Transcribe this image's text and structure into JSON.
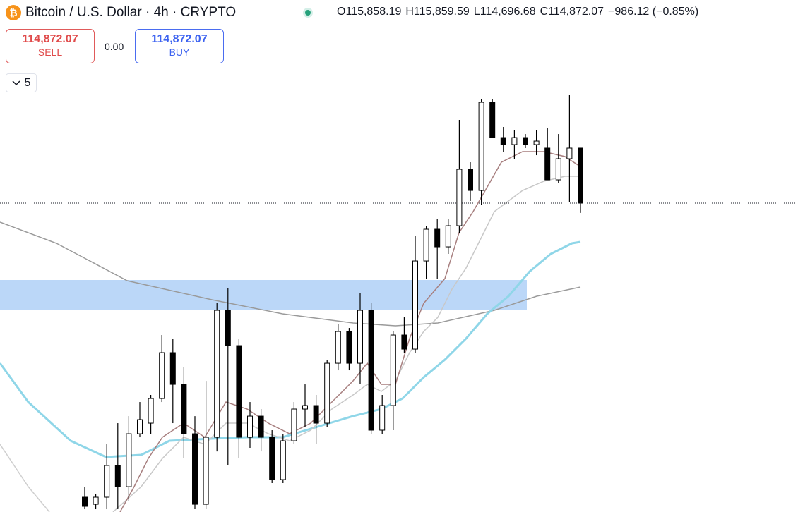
{
  "header": {
    "symbol_title": "Bitcoin / U.S. Dollar · 4h · CRYPTO",
    "ohlc": [
      {
        "key": "O",
        "value": "115,858.19"
      },
      {
        "key": "H",
        "value": "115,859.59"
      },
      {
        "key": "L",
        "value": "114,696.68"
      },
      {
        "key": "C",
        "value": "114,872.07"
      }
    ],
    "change": "−986.12 (−0.85%)"
  },
  "trade": {
    "sell": {
      "price": "114,872.07",
      "label": "SELL"
    },
    "spread": "0.00",
    "buy": {
      "price": "114,872.07",
      "label": "BUY"
    }
  },
  "indicator_toggle": "5",
  "candles": [
    [
      109601,
      109790,
      109386,
      109437
    ],
    [
      109474,
      109664,
      109386,
      109601
    ],
    [
      109601,
      110549,
      109386,
      110170
    ],
    [
      110170,
      110928,
      109386,
      109790
    ],
    [
      109790,
      111054,
      109538,
      110738
    ],
    [
      110738,
      111307,
      110675,
      110991
    ],
    [
      110928,
      111434,
      110738,
      111370
    ],
    [
      111370,
      112508,
      111307,
      112192
    ],
    [
      112192,
      112445,
      110928,
      111623
    ],
    [
      111623,
      111939,
      110296,
      110738
    ],
    [
      110738,
      111054,
      109386,
      109474
    ],
    [
      109474,
      111686,
      109386,
      110675
    ],
    [
      110675,
      113077,
      110422,
      112950
    ],
    [
      112950,
      113355,
      110170,
      112318
    ],
    [
      112318,
      112445,
      110296,
      110675
    ],
    [
      110675,
      111307,
      110486,
      111054
    ],
    [
      111054,
      111181,
      110422,
      110675
    ],
    [
      110675,
      110802,
      109854,
      109917
    ],
    [
      109917,
      110738,
      109854,
      110612
    ],
    [
      110612,
      111307,
      110549,
      111181
    ],
    [
      111181,
      111623,
      110865,
      111244
    ],
    [
      111244,
      111434,
      110549,
      110928
    ],
    [
      110928,
      112066,
      110865,
      112002
    ],
    [
      112002,
      112698,
      111876,
      112571
    ],
    [
      112571,
      112634,
      111876,
      112002
    ],
    [
      112002,
      113266,
      111623,
      112950
    ],
    [
      112950,
      113077,
      110738,
      110802
    ],
    [
      110802,
      111434,
      110738,
      111244
    ],
    [
      111244,
      112571,
      110802,
      112508
    ],
    [
      112508,
      112824,
      112192,
      112255
    ],
    [
      112255,
      114278,
      112192,
      113835
    ],
    [
      113835,
      114467,
      113519,
      114404
    ],
    [
      114404,
      114594,
      113519,
      114088
    ],
    [
      114088,
      114594,
      113962,
      114467
    ],
    [
      114467,
      116363,
      114341,
      115478
    ],
    [
      115478,
      115605,
      114910,
      115099
    ],
    [
      115099,
      116742,
      114846,
      116679
    ],
    [
      116679,
      116742,
      116047,
      116047
    ],
    [
      116047,
      116237,
      115794,
      115921
    ],
    [
      115921,
      116174,
      115668,
      116047
    ],
    [
      116047,
      116110,
      115858,
      115921
    ],
    [
      115921,
      116174,
      115731,
      115984
    ],
    [
      115858,
      116212,
      115289,
      115289
    ],
    [
      115289,
      116110,
      115226,
      115668
    ],
    [
      115668,
      116806,
      114884,
      115858
    ],
    [
      115858.19,
      115859.59,
      114696.68,
      114872.07
    ]
  ]
}
